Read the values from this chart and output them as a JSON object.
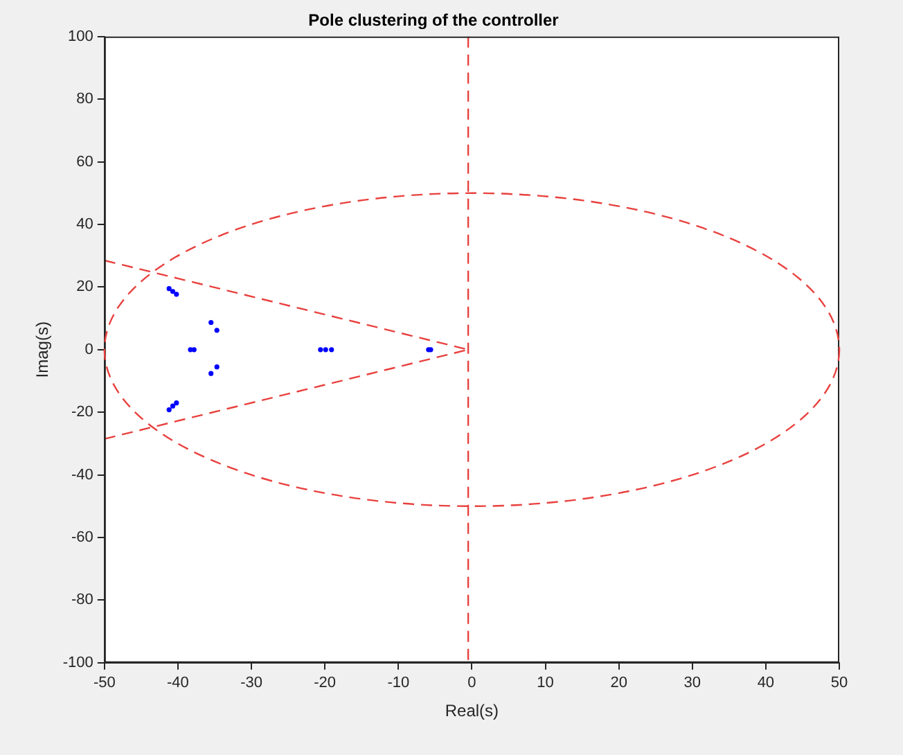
{
  "chart_data": {
    "type": "scatter",
    "title": "Pole clustering of the controller",
    "xlabel": "Real(s)",
    "ylabel": "Imag(s)",
    "xlim": [
      -50,
      50
    ],
    "xticks": [
      -50,
      -40,
      -30,
      -20,
      -10,
      0,
      10,
      20,
      30,
      40,
      50
    ],
    "ylim": [
      -100,
      100
    ],
    "yticks": [
      -100,
      -80,
      -60,
      -40,
      -20,
      0,
      20,
      40,
      60,
      80,
      100
    ],
    "grid": false,
    "legend": false,
    "series": [
      {
        "color": "#0000ff",
        "marker": "circle",
        "x": [
          -41.2,
          -40.7,
          -40.2,
          -35.5,
          -34.7,
          -38.3,
          -37.8,
          -35.5,
          -34.7,
          -41.2,
          -40.7,
          -40.2,
          -20.6,
          -19.9,
          -19.1,
          -5.9,
          -5.6
        ],
        "values": [
          19.5,
          18.6,
          17.7,
          8.7,
          6.2,
          0,
          0,
          -7.6,
          -5.5,
          -19.2,
          -18.0,
          -17.0,
          0,
          0,
          0,
          0,
          0
        ]
      },
      {
        "type": "line",
        "color": "#e8413e",
        "marker": "none",
        "line_style": "dashed",
        "x": [
          -50,
          -0.5
        ],
        "values": [
          28.5,
          0
        ]
      },
      {
        "type": "line",
        "color": "#e8413e",
        "marker": "none",
        "line_style": "dashed",
        "x": [
          -50,
          -0.5
        ],
        "values": [
          -28.5,
          0
        ]
      }
    ],
    "ref_lines": [
      {
        "axis": "x",
        "value": -0.5,
        "color": "#e8413e",
        "line_style": "dashed"
      }
    ]
  }
}
